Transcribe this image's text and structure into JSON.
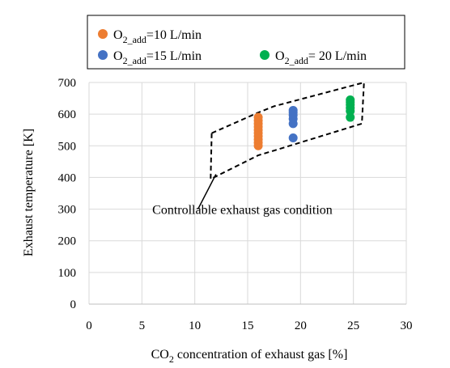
{
  "chart_data": {
    "type": "scatter",
    "xlabel_prefix": "CO",
    "xlabel_sub": "2",
    "xlabel_suffix": " concentration of exhaust gas [%]",
    "ylabel": "Exhaust temperature [K]",
    "xlim": [
      0,
      30
    ],
    "ylim": [
      0,
      700
    ],
    "xticks": [
      0,
      5,
      10,
      15,
      20,
      25,
      30
    ],
    "yticks": [
      0,
      100,
      200,
      300,
      400,
      500,
      600,
      700
    ],
    "grid": true,
    "legend_position": "top",
    "series": [
      {
        "name_prefix": "O",
        "name_sub": "2_add",
        "name_suffix": "=10 L/min",
        "color": "#ED7D31",
        "x": [
          16,
          16,
          16,
          16,
          16,
          16,
          16,
          16,
          16,
          16
        ],
        "y": [
          500,
          510,
          520,
          530,
          540,
          550,
          560,
          570,
          580,
          590
        ]
      },
      {
        "name_prefix": "O",
        "name_sub": "2_add",
        "name_suffix": "=15 L/min",
        "color": "#4472C4",
        "x": [
          19.3,
          19.3,
          19.3,
          19.3,
          19.3,
          19.3
        ],
        "y": [
          525,
          570,
          585,
          597,
          605,
          612
        ]
      },
      {
        "name_prefix": "O",
        "name_sub": "2_add",
        "name_suffix": "= 20 L/min",
        "color": "#00B050",
        "x": [
          24.7,
          24.7,
          24.7,
          24.7,
          24.7,
          24.7
        ],
        "y": [
          590,
          610,
          620,
          630,
          638,
          645
        ]
      }
    ],
    "region": {
      "x": [
        11.6,
        16,
        17.5,
        26,
        25.8,
        17.5,
        16,
        11.5
      ],
      "y": [
        540,
        605,
        625,
        700,
        570,
        485,
        470,
        395
      ]
    },
    "annotation": {
      "text": "Controllable exhaust gas condition",
      "x": 14.5,
      "y": 285,
      "arrow_from": [
        10.3,
        300
      ],
      "arrow_to": [
        12.0,
        410
      ]
    }
  }
}
